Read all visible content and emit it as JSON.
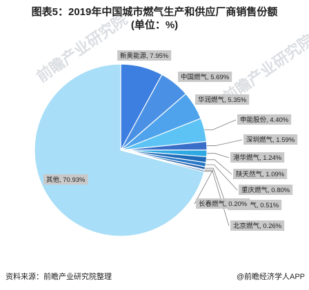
{
  "chart_data": {
    "type": "pie",
    "title_line1": "图表5：2019年中国城市燃气生产和供应厂商销售份额",
    "title_line2": "(单位：%)",
    "slices": [
      {
        "name": "新奥能源",
        "value": 7.95,
        "label": "新奥能源, 7.95%",
        "color": "#3d7fe0"
      },
      {
        "name": "中国燃气",
        "value": 5.69,
        "label": "中国燃气, 5.69%",
        "color": "#4a90e4"
      },
      {
        "name": "华润燃气",
        "value": 5.35,
        "label": "华润燃气, 5.35%",
        "color": "#4fa3ec"
      },
      {
        "name": "申能股份",
        "value": 4.4,
        "label": "申能股份, 4.40%",
        "color": "#5cc3f4"
      },
      {
        "name": "深圳燃气",
        "value": 1.59,
        "label": "深圳燃气, 1.59%",
        "color": "#3a6fc9"
      },
      {
        "name": "港华燃气",
        "value": 1.24,
        "label": "港华燃气, 1.24%",
        "color": "#2fa9e3"
      },
      {
        "name": "陕天然气",
        "value": 1.09,
        "label": "陕天然气, 1.09%",
        "color": "#1f6bb8"
      },
      {
        "name": "重庆燃气",
        "value": 0.8,
        "label": "重庆燃气, 0.80%",
        "color": "#2778c7"
      },
      {
        "name": "广州燃气",
        "value": 0.51,
        "label": "广州燃气, 0.51%",
        "color": "#1c5aa6"
      },
      {
        "name": "长春燃气",
        "value": 0.2,
        "label": "长春燃气, 0.20%",
        "color": "#2f86d4"
      },
      {
        "name": "北京燃气",
        "value": 0.26,
        "label": "北京燃气, 0.26%",
        "color": "#174f97"
      },
      {
        "name": "其他",
        "value": 70.93,
        "label": "其他, 70.93%",
        "color": "#a8def7"
      }
    ]
  },
  "footer": {
    "source": "资料来源：前瞻产业研究院整理",
    "brand": "@前瞻经济学人APP"
  },
  "watermark": {
    "text": "前瞻产业研究院"
  }
}
